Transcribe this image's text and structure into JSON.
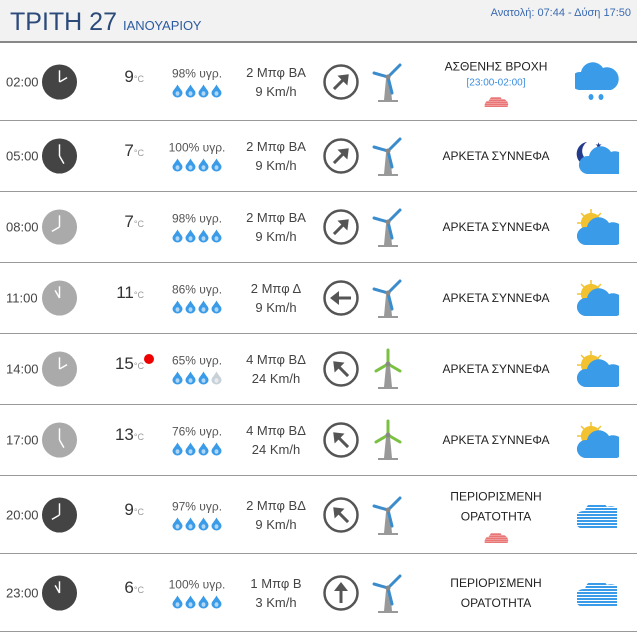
{
  "header": {
    "day": "ΤΡΙΤΗ 27",
    "month": "ΙΑΝΟΥΑΡΙΟΥ",
    "sun": "Ανατολή: 07:44  - Δύση 17:50"
  },
  "temp_unit": "°C",
  "colors": {
    "drop": "#3a9be8",
    "drop_empty": "#c8d0d8",
    "turbine_blue": "#3a8ccc",
    "turbine_green": "#7ac142",
    "warning": "#e03a3a",
    "max_temp_dot": "#e00000"
  },
  "rows": [
    {
      "time": "02:00",
      "hour": 2,
      "night": true,
      "temp": "9",
      "humidity": "98% υγρ.",
      "drops": 4,
      "beaufort": "2 Μπφ ΒΑ",
      "speed": "9 Km/h",
      "wind_from_deg": 45,
      "turbine": "blue",
      "desc": [
        "ΑΣΘΕΝΗΣ ΒΡΟΧΗ"
      ],
      "range": "[23:00-02:00]",
      "warning": true,
      "icon": "rain-cloud-icon",
      "max": false
    },
    {
      "time": "05:00",
      "hour": 5,
      "night": true,
      "temp": "7",
      "humidity": "100% υγρ.",
      "drops": 4,
      "beaufort": "2 Μπφ ΒΑ",
      "speed": "9 Km/h",
      "wind_from_deg": 45,
      "turbine": "blue",
      "desc": [
        "ΑΡΚΕΤΑ ΣΥΝΝΕΦΑ"
      ],
      "warning": false,
      "icon": "moon-cloud-icon",
      "max": false
    },
    {
      "time": "08:00",
      "hour": 8,
      "night": false,
      "temp": "7",
      "humidity": "98% υγρ.",
      "drops": 4,
      "beaufort": "2 Μπφ ΒΑ",
      "speed": "9 Km/h",
      "wind_from_deg": 45,
      "turbine": "blue",
      "desc": [
        "ΑΡΚΕΤΑ ΣΥΝΝΕΦΑ"
      ],
      "warning": false,
      "icon": "sun-cloud-icon",
      "max": false
    },
    {
      "time": "11:00",
      "hour": 11,
      "night": false,
      "temp": "11",
      "humidity": "86% υγρ.",
      "drops": 4,
      "beaufort": "2 Μπφ Δ",
      "speed": "9 Km/h",
      "wind_from_deg": 270,
      "turbine": "blue",
      "desc": [
        "ΑΡΚΕΤΑ ΣΥΝΝΕΦΑ"
      ],
      "warning": false,
      "icon": "sun-cloud-icon",
      "max": false
    },
    {
      "time": "14:00",
      "hour": 2,
      "night": false,
      "temp": "15",
      "humidity": "65% υγρ.",
      "drops": 3,
      "beaufort": "4 Μπφ ΒΔ",
      "speed": "24 Km/h",
      "wind_from_deg": 315,
      "turbine": "green",
      "desc": [
        "ΑΡΚΕΤΑ ΣΥΝΝΕΦΑ"
      ],
      "warning": false,
      "icon": "sun-cloud-icon",
      "max": true
    },
    {
      "time": "17:00",
      "hour": 5,
      "night": false,
      "temp": "13",
      "humidity": "76% υγρ.",
      "drops": 4,
      "beaufort": "4 Μπφ ΒΔ",
      "speed": "24 Km/h",
      "wind_from_deg": 315,
      "turbine": "green",
      "desc": [
        "ΑΡΚΕΤΑ ΣΥΝΝΕΦΑ"
      ],
      "warning": false,
      "icon": "sun-cloud-icon",
      "max": false
    },
    {
      "time": "20:00",
      "hour": 8,
      "night": true,
      "temp": "9",
      "humidity": "97% υγρ.",
      "drops": 4,
      "beaufort": "2 Μπφ ΒΔ",
      "speed": "9 Km/h",
      "wind_from_deg": 315,
      "turbine": "blue",
      "desc": [
        "ΠΕΡΙΟΡΙΣΜΕΝΗ",
        "ΟΡΑΤΟΤΗΤΑ"
      ],
      "warning": true,
      "icon": "fog-cloud-icon",
      "max": false
    },
    {
      "time": "23:00",
      "hour": 11,
      "night": true,
      "temp": "6",
      "humidity": "100% υγρ.",
      "drops": 4,
      "beaufort": "1 Μπφ Β",
      "speed": "3 Km/h",
      "wind_from_deg": 0,
      "turbine": "blue",
      "desc": [
        "ΠΕΡΙΟΡΙΣΜΕΝΗ",
        "ΟΡΑΤΟΤΗΤΑ"
      ],
      "warning": false,
      "icon": "fog-cloud-icon",
      "max": false
    }
  ]
}
